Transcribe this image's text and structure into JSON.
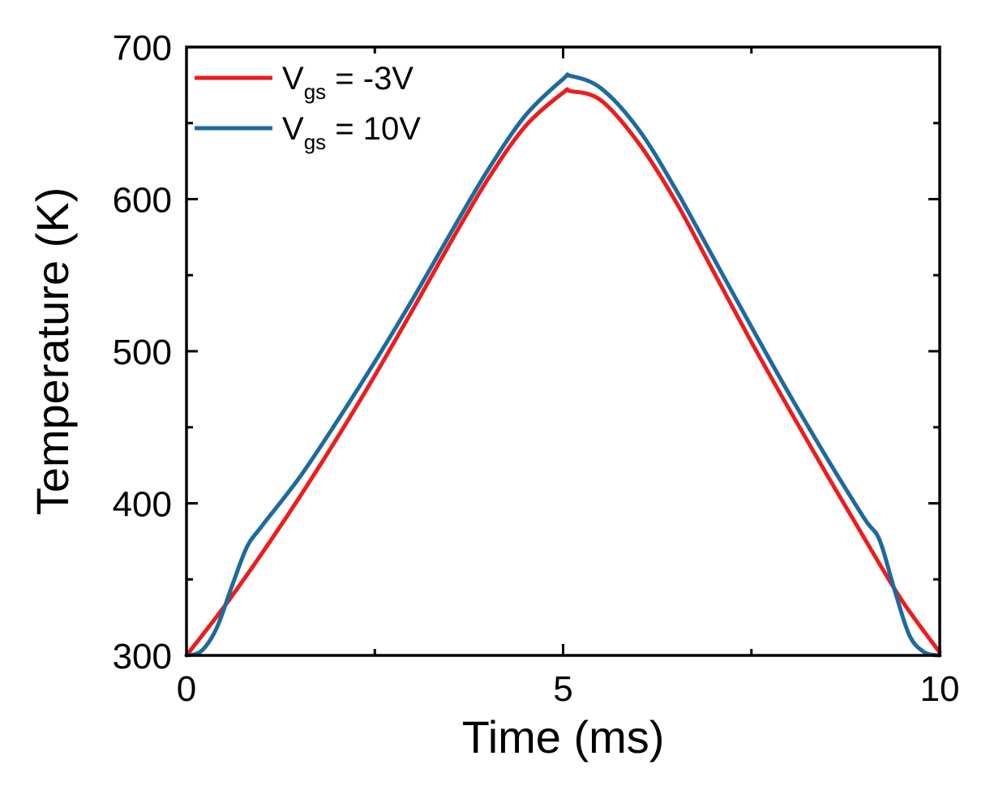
{
  "chart_data": {
    "type": "line",
    "title": "",
    "xlabel": "Time (ms)",
    "ylabel": "Temperature (K)",
    "xlim": [
      0,
      10
    ],
    "ylim": [
      300,
      700
    ],
    "x_ticks": [
      0,
      5,
      10
    ],
    "x_tick_labels": [
      "0",
      "5",
      "10"
    ],
    "y_ticks": [
      300,
      400,
      500,
      600,
      700
    ],
    "y_tick_labels": [
      "300",
      "400",
      "500",
      "600",
      "700"
    ],
    "grid": false,
    "legend_position": "top-left",
    "series": [
      {
        "name": "Vgs = -3V",
        "legend_main": "V",
        "legend_sub": "gs",
        "legend_rest": " = -3V",
        "color": "#ee1c1c",
        "x": [
          0,
          0.5,
          1,
          1.5,
          2,
          2.5,
          3,
          3.5,
          4,
          4.5,
          5,
          5.1,
          5.5,
          6,
          6.5,
          7,
          7.5,
          8,
          8.5,
          9,
          9.5,
          10
        ],
        "y": [
          300,
          332,
          367,
          404,
          443,
          484,
          527,
          571,
          613,
          648,
          670,
          671,
          665,
          637,
          598,
          552,
          506,
          462,
          419,
          377,
          336,
          302
        ]
      },
      {
        "name": "Vgs = 10V",
        "legend_main": "V",
        "legend_sub": "gs",
        "legend_rest": " = 10V",
        "color": "#1c6aa0",
        "x": [
          0,
          0.2,
          0.4,
          0.6,
          0.8,
          1,
          1.5,
          2,
          2.5,
          3,
          3.5,
          4,
          4.5,
          5,
          5.1,
          5.5,
          6,
          6.5,
          7,
          7.5,
          8,
          8.5,
          9,
          9.2,
          9.4,
          9.6,
          9.8,
          10
        ],
        "y": [
          300,
          303,
          318,
          345,
          371,
          385,
          417,
          454,
          493,
          534,
          577,
          619,
          655,
          679,
          681,
          673,
          646,
          606,
          561,
          516,
          472,
          430,
          390,
          376,
          343,
          313,
          302,
          300
        ]
      }
    ]
  }
}
